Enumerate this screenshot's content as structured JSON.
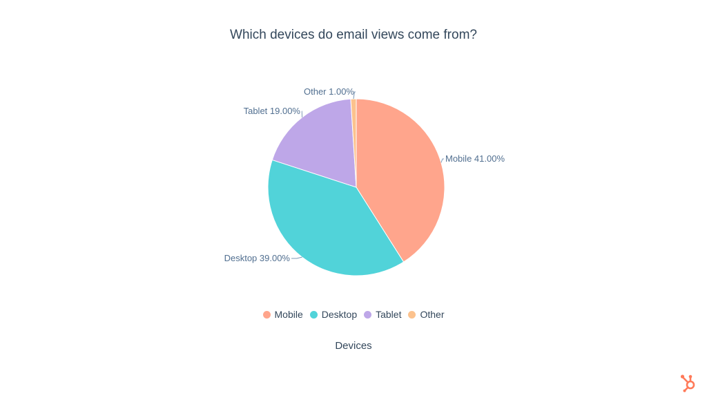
{
  "chart_data": {
    "type": "pie",
    "title": "Which devices do email views come from?",
    "xlabel": "Devices",
    "categories": [
      "Mobile",
      "Desktop",
      "Tablet",
      "Other"
    ],
    "values": [
      41.0,
      39.0,
      19.0,
      1.0
    ],
    "labels": [
      "Mobile 41.00%",
      "Desktop 39.00%",
      "Tablet 19.00%",
      "Other 1.00%"
    ],
    "colors": [
      "#ffa58c",
      "#51d3d9",
      "#bea7e8",
      "#fcc28d"
    ],
    "start_angle_deg": 0,
    "direction": "clockwise",
    "legend_position": "bottom"
  },
  "legend": [
    {
      "label": "Mobile",
      "color": "#ffa58c"
    },
    {
      "label": "Desktop",
      "color": "#51d3d9"
    },
    {
      "label": "Tablet",
      "color": "#bea7e8"
    },
    {
      "label": "Other",
      "color": "#fcc28d"
    }
  ],
  "brand": {
    "logo_icon": "hubspot-sprocket-icon",
    "color": "#ff7a59"
  }
}
